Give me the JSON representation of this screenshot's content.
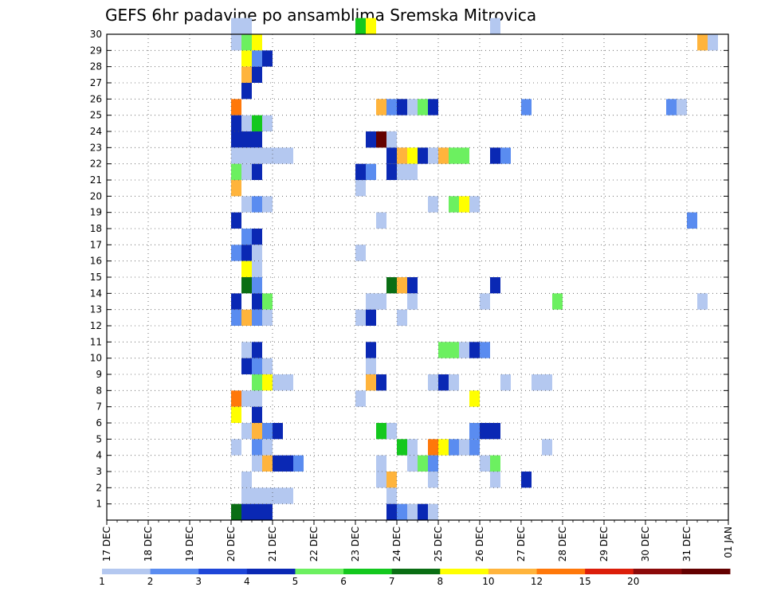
{
  "chart_data": {
    "type": "heatmap",
    "title": "GEFS 6hr padavine po ansamblima Sremska Mitrovica",
    "xlabel": "",
    "ylabel": "",
    "x_ticks": [
      "17 DEC",
      "18 DEC",
      "19 DEC",
      "20 DEC",
      "21 DEC",
      "22 DEC",
      "23 DEC",
      "24 DEC",
      "25 DEC",
      "26 DEC",
      "27 DEC",
      "28 DEC",
      "29 DEC",
      "30 DEC",
      "31 DEC",
      "01 JAN"
    ],
    "y_ticks": [
      1,
      2,
      3,
      4,
      5,
      6,
      7,
      8,
      9,
      10,
      11,
      12,
      13,
      14,
      15,
      16,
      17,
      18,
      19,
      20,
      21,
      22,
      23,
      24,
      25,
      26,
      27,
      28,
      29,
      30
    ],
    "x_unit": "6 h steps from 17 DEC 00z",
    "x_range": [
      0,
      60
    ],
    "y_range": [
      0,
      30
    ],
    "grid": true,
    "colorbar": {
      "labels": [
        "1",
        "2",
        "3",
        "4",
        "5",
        "6",
        "7",
        "8",
        "10",
        "12",
        "15",
        "20"
      ],
      "colors": [
        "#b4c8f0",
        "#5a8cf0",
        "#1e46d8",
        "#0a28b4",
        "#6cf060",
        "#14c81e",
        "#0a6e14",
        "#ffff00",
        "#ffb43c",
        "#ff780a",
        "#dc1e0a",
        "#8c0a0a",
        "#640000"
      ]
    },
    "cells": [
      {
        "y": 30,
        "x": 12,
        "bin": 0
      },
      {
        "y": 30,
        "x": 13,
        "bin": 0
      },
      {
        "y": 30,
        "x": 24,
        "bin": 5
      },
      {
        "y": 30,
        "x": 25,
        "bin": 7
      },
      {
        "y": 30,
        "x": 37,
        "bin": 0
      },
      {
        "y": 29,
        "x": 12,
        "bin": 0
      },
      {
        "y": 29,
        "x": 13,
        "bin": 4
      },
      {
        "y": 29,
        "x": 14,
        "bin": 7
      },
      {
        "y": 29,
        "x": 57,
        "bin": 8
      },
      {
        "y": 29,
        "x": 58,
        "bin": 0
      },
      {
        "y": 28,
        "x": 13,
        "bin": 7
      },
      {
        "y": 28,
        "x": 14,
        "bin": 1
      },
      {
        "y": 28,
        "x": 15,
        "bin": 3
      },
      {
        "y": 27,
        "x": 13,
        "bin": 8
      },
      {
        "y": 27,
        "x": 14,
        "bin": 3
      },
      {
        "y": 26,
        "x": 13,
        "bin": 3
      },
      {
        "y": 25,
        "x": 12,
        "bin": 9
      },
      {
        "y": 25,
        "x": 26,
        "bin": 8
      },
      {
        "y": 25,
        "x": 27,
        "bin": 1
      },
      {
        "y": 25,
        "x": 28,
        "bin": 3
      },
      {
        "y": 25,
        "x": 29,
        "bin": 0
      },
      {
        "y": 25,
        "x": 30,
        "bin": 4
      },
      {
        "y": 25,
        "x": 31,
        "bin": 3
      },
      {
        "y": 25,
        "x": 40,
        "bin": 1
      },
      {
        "y": 25,
        "x": 54,
        "bin": 1
      },
      {
        "y": 25,
        "x": 55,
        "bin": 0
      },
      {
        "y": 24,
        "x": 12,
        "bin": 3
      },
      {
        "y": 24,
        "x": 13,
        "bin": 0
      },
      {
        "y": 24,
        "x": 14,
        "bin": 5
      },
      {
        "y": 24,
        "x": 15,
        "bin": 0
      },
      {
        "y": 23,
        "x": 12,
        "bin": 3
      },
      {
        "y": 23,
        "x": 13,
        "bin": 3
      },
      {
        "y": 23,
        "x": 14,
        "bin": 3
      },
      {
        "y": 23,
        "x": 25,
        "bin": 3
      },
      {
        "y": 23,
        "x": 26,
        "bin": 12
      },
      {
        "y": 23,
        "x": 27,
        "bin": 0
      },
      {
        "y": 22,
        "x": 12,
        "bin": 0
      },
      {
        "y": 22,
        "x": 13,
        "bin": 0
      },
      {
        "y": 22,
        "x": 14,
        "bin": 0
      },
      {
        "y": 22,
        "x": 15,
        "bin": 0
      },
      {
        "y": 22,
        "x": 16,
        "bin": 0
      },
      {
        "y": 22,
        "x": 17,
        "bin": 0
      },
      {
        "y": 22,
        "x": 27,
        "bin": 3
      },
      {
        "y": 22,
        "x": 28,
        "bin": 8
      },
      {
        "y": 22,
        "x": 29,
        "bin": 7
      },
      {
        "y": 22,
        "x": 30,
        "bin": 3
      },
      {
        "y": 22,
        "x": 31,
        "bin": 0
      },
      {
        "y": 22,
        "x": 32,
        "bin": 8
      },
      {
        "y": 22,
        "x": 33,
        "bin": 4
      },
      {
        "y": 22,
        "x": 34,
        "bin": 4
      },
      {
        "y": 22,
        "x": 37,
        "bin": 3
      },
      {
        "y": 22,
        "x": 38,
        "bin": 1
      },
      {
        "y": 21,
        "x": 12,
        "bin": 4
      },
      {
        "y": 21,
        "x": 13,
        "bin": 0
      },
      {
        "y": 21,
        "x": 14,
        "bin": 3
      },
      {
        "y": 21,
        "x": 24,
        "bin": 3
      },
      {
        "y": 21,
        "x": 25,
        "bin": 1
      },
      {
        "y": 21,
        "x": 27,
        "bin": 3
      },
      {
        "y": 21,
        "x": 28,
        "bin": 0
      },
      {
        "y": 21,
        "x": 29,
        "bin": 0
      },
      {
        "y": 20,
        "x": 12,
        "bin": 8
      },
      {
        "y": 20,
        "x": 24,
        "bin": 0
      },
      {
        "y": 19,
        "x": 13,
        "bin": 0
      },
      {
        "y": 19,
        "x": 14,
        "bin": 1
      },
      {
        "y": 19,
        "x": 15,
        "bin": 0
      },
      {
        "y": 19,
        "x": 31,
        "bin": 0
      },
      {
        "y": 19,
        "x": 33,
        "bin": 4
      },
      {
        "y": 19,
        "x": 34,
        "bin": 7
      },
      {
        "y": 19,
        "x": 35,
        "bin": 0
      },
      {
        "y": 18,
        "x": 12,
        "bin": 3
      },
      {
        "y": 18,
        "x": 26,
        "bin": 0
      },
      {
        "y": 18,
        "x": 56,
        "bin": 1
      },
      {
        "y": 17,
        "x": 13,
        "bin": 1
      },
      {
        "y": 17,
        "x": 14,
        "bin": 3
      },
      {
        "y": 16,
        "x": 12,
        "bin": 1
      },
      {
        "y": 16,
        "x": 13,
        "bin": 3
      },
      {
        "y": 16,
        "x": 14,
        "bin": 0
      },
      {
        "y": 16,
        "x": 24,
        "bin": 0
      },
      {
        "y": 15,
        "x": 13,
        "bin": 7
      },
      {
        "y": 15,
        "x": 14,
        "bin": 0
      },
      {
        "y": 14,
        "x": 13,
        "bin": 6
      },
      {
        "y": 14,
        "x": 14,
        "bin": 1
      },
      {
        "y": 14,
        "x": 27,
        "bin": 6
      },
      {
        "y": 14,
        "x": 28,
        "bin": 8
      },
      {
        "y": 14,
        "x": 29,
        "bin": 3
      },
      {
        "y": 14,
        "x": 37,
        "bin": 3
      },
      {
        "y": 13,
        "x": 12,
        "bin": 3
      },
      {
        "y": 13,
        "x": 14,
        "bin": 3
      },
      {
        "y": 13,
        "x": 15,
        "bin": 4
      },
      {
        "y": 13,
        "x": 25,
        "bin": 0
      },
      {
        "y": 13,
        "x": 26,
        "bin": 0
      },
      {
        "y": 13,
        "x": 29,
        "bin": 0
      },
      {
        "y": 13,
        "x": 36,
        "bin": 0
      },
      {
        "y": 13,
        "x": 43,
        "bin": 4
      },
      {
        "y": 13,
        "x": 57,
        "bin": 0
      },
      {
        "y": 12,
        "x": 12,
        "bin": 1
      },
      {
        "y": 12,
        "x": 13,
        "bin": 8
      },
      {
        "y": 12,
        "x": 14,
        "bin": 1
      },
      {
        "y": 12,
        "x": 15,
        "bin": 0
      },
      {
        "y": 12,
        "x": 24,
        "bin": 0
      },
      {
        "y": 12,
        "x": 25,
        "bin": 3
      },
      {
        "y": 12,
        "x": 28,
        "bin": 0
      },
      {
        "y": 10,
        "x": 13,
        "bin": 0
      },
      {
        "y": 10,
        "x": 14,
        "bin": 3
      },
      {
        "y": 10,
        "x": 25,
        "bin": 3
      },
      {
        "y": 10,
        "x": 32,
        "bin": 4
      },
      {
        "y": 10,
        "x": 33,
        "bin": 4
      },
      {
        "y": 10,
        "x": 34,
        "bin": 0
      },
      {
        "y": 10,
        "x": 35,
        "bin": 3
      },
      {
        "y": 10,
        "x": 36,
        "bin": 1
      },
      {
        "y": 9,
        "x": 13,
        "bin": 3
      },
      {
        "y": 9,
        "x": 14,
        "bin": 1
      },
      {
        "y": 9,
        "x": 15,
        "bin": 0
      },
      {
        "y": 9,
        "x": 25,
        "bin": 0
      },
      {
        "y": 8,
        "x": 14,
        "bin": 4
      },
      {
        "y": 8,
        "x": 15,
        "bin": 7
      },
      {
        "y": 8,
        "x": 16,
        "bin": 0
      },
      {
        "y": 8,
        "x": 17,
        "bin": 0
      },
      {
        "y": 8,
        "x": 25,
        "bin": 8
      },
      {
        "y": 8,
        "x": 26,
        "bin": 3
      },
      {
        "y": 8,
        "x": 31,
        "bin": 0
      },
      {
        "y": 8,
        "x": 32,
        "bin": 3
      },
      {
        "y": 8,
        "x": 33,
        "bin": 0
      },
      {
        "y": 8,
        "x": 38,
        "bin": 0
      },
      {
        "y": 8,
        "x": 41,
        "bin": 0
      },
      {
        "y": 8,
        "x": 42,
        "bin": 0
      },
      {
        "y": 7,
        "x": 12,
        "bin": 9
      },
      {
        "y": 7,
        "x": 13,
        "bin": 0
      },
      {
        "y": 7,
        "x": 14,
        "bin": 0
      },
      {
        "y": 7,
        "x": 24,
        "bin": 0
      },
      {
        "y": 7,
        "x": 35,
        "bin": 7
      },
      {
        "y": 6,
        "x": 12,
        "bin": 7
      },
      {
        "y": 6,
        "x": 14,
        "bin": 3
      },
      {
        "y": 5,
        "x": 13,
        "bin": 0
      },
      {
        "y": 5,
        "x": 14,
        "bin": 8
      },
      {
        "y": 5,
        "x": 15,
        "bin": 1
      },
      {
        "y": 5,
        "x": 16,
        "bin": 3
      },
      {
        "y": 5,
        "x": 26,
        "bin": 5
      },
      {
        "y": 5,
        "x": 27,
        "bin": 0
      },
      {
        "y": 5,
        "x": 35,
        "bin": 1
      },
      {
        "y": 5,
        "x": 36,
        "bin": 3
      },
      {
        "y": 5,
        "x": 37,
        "bin": 3
      },
      {
        "y": 4,
        "x": 12,
        "bin": 0
      },
      {
        "y": 4,
        "x": 14,
        "bin": 1
      },
      {
        "y": 4,
        "x": 15,
        "bin": 0
      },
      {
        "y": 4,
        "x": 28,
        "bin": 5
      },
      {
        "y": 4,
        "x": 29,
        "bin": 0
      },
      {
        "y": 4,
        "x": 31,
        "bin": 9
      },
      {
        "y": 4,
        "x": 32,
        "bin": 7
      },
      {
        "y": 4,
        "x": 33,
        "bin": 1
      },
      {
        "y": 4,
        "x": 34,
        "bin": 0
      },
      {
        "y": 4,
        "x": 35,
        "bin": 1
      },
      {
        "y": 4,
        "x": 42,
        "bin": 0
      },
      {
        "y": 3,
        "x": 14,
        "bin": 0
      },
      {
        "y": 3,
        "x": 15,
        "bin": 8
      },
      {
        "y": 3,
        "x": 16,
        "bin": 3
      },
      {
        "y": 3,
        "x": 17,
        "bin": 3
      },
      {
        "y": 3,
        "x": 18,
        "bin": 1
      },
      {
        "y": 3,
        "x": 26,
        "bin": 0
      },
      {
        "y": 3,
        "x": 29,
        "bin": 0
      },
      {
        "y": 3,
        "x": 30,
        "bin": 4
      },
      {
        "y": 3,
        "x": 31,
        "bin": 1
      },
      {
        "y": 3,
        "x": 36,
        "bin": 0
      },
      {
        "y": 3,
        "x": 37,
        "bin": 4
      },
      {
        "y": 2,
        "x": 13,
        "bin": 0
      },
      {
        "y": 2,
        "x": 26,
        "bin": 0
      },
      {
        "y": 2,
        "x": 27,
        "bin": 8
      },
      {
        "y": 2,
        "x": 31,
        "bin": 0
      },
      {
        "y": 2,
        "x": 37,
        "bin": 0
      },
      {
        "y": 2,
        "x": 40,
        "bin": 3
      },
      {
        "y": 1,
        "x": 13,
        "bin": 0
      },
      {
        "y": 1,
        "x": 14,
        "bin": 0
      },
      {
        "y": 1,
        "x": 15,
        "bin": 0
      },
      {
        "y": 1,
        "x": 16,
        "bin": 0
      },
      {
        "y": 1,
        "x": 17,
        "bin": 0
      },
      {
        "y": 1,
        "x": 27,
        "bin": 0
      },
      {
        "y": 0,
        "x": 12,
        "bin": 6
      },
      {
        "y": 0,
        "x": 13,
        "bin": 3
      },
      {
        "y": 0,
        "x": 14,
        "bin": 3
      },
      {
        "y": 0,
        "x": 15,
        "bin": 3
      },
      {
        "y": 0,
        "x": 27,
        "bin": 3
      },
      {
        "y": 0,
        "x": 28,
        "bin": 1
      },
      {
        "y": 0,
        "x": 29,
        "bin": 0
      },
      {
        "y": 0,
        "x": 30,
        "bin": 3
      },
      {
        "y": 0,
        "x": 31,
        "bin": 0
      }
    ]
  }
}
